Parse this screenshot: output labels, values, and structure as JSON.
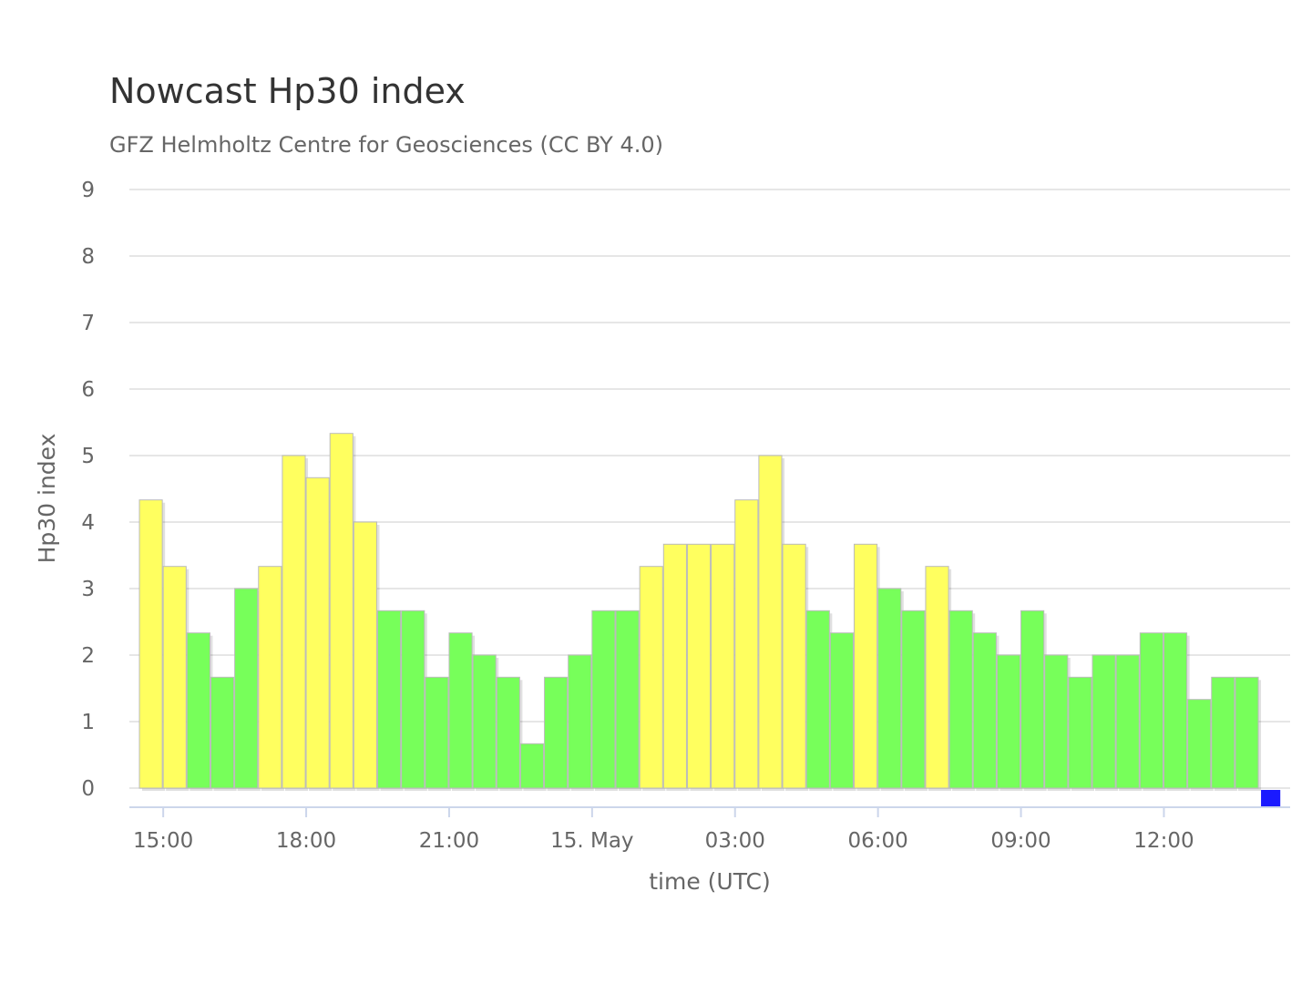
{
  "title": "Nowcast Hp30 index",
  "subtitle": "GFZ Helmholtz Centre for Geosciences (CC BY 4.0)",
  "chart_data": {
    "type": "bar",
    "title": "Nowcast Hp30 index",
    "subtitle": "GFZ Helmholtz Centre for Geosciences (CC BY 4.0)",
    "xlabel": "time (UTC)",
    "ylabel": "Hp30 index",
    "ylim": [
      0,
      9
    ],
    "yticks": [
      "0",
      "1",
      "2",
      "3",
      "4",
      "5",
      "6",
      "7",
      "8",
      "9"
    ],
    "interval_minutes": 30,
    "first_bar_start": "14:30",
    "xticks": [
      {
        "label": "15:00",
        "slot": 1
      },
      {
        "label": "18:00",
        "slot": 7
      },
      {
        "label": "21:00",
        "slot": 13
      },
      {
        "label": "15. May",
        "slot": 19
      },
      {
        "label": "03:00",
        "slot": 25
      },
      {
        "label": "06:00",
        "slot": 31
      },
      {
        "label": "09:00",
        "slot": 37
      },
      {
        "label": "12:00",
        "slot": 43
      }
    ],
    "grid": true,
    "colors": {
      "quiet": "#77ff5a",
      "elevated": "#ffff5f",
      "current": "#1a1aff",
      "grid": "#e6e6e6",
      "axis": "#ccd6eb"
    },
    "values": [
      4.333,
      3.333,
      2.333,
      1.667,
      3.0,
      3.333,
      5.0,
      4.667,
      5.333,
      4.0,
      2.667,
      2.667,
      1.667,
      2.333,
      2.0,
      1.667,
      0.667,
      1.667,
      2.0,
      2.667,
      2.667,
      3.333,
      3.667,
      3.667,
      3.667,
      4.333,
      5.0,
      3.667,
      2.667,
      2.333,
      3.667,
      3.0,
      2.667,
      3.333,
      2.667,
      2.333,
      2.0,
      2.667,
      2.0,
      1.667,
      2.0,
      2.0,
      2.333,
      2.333,
      1.333,
      1.667,
      1.667,
      0
    ],
    "categories_color": [
      "elevated",
      "elevated",
      "quiet",
      "quiet",
      "quiet",
      "elevated",
      "elevated",
      "elevated",
      "elevated",
      "elevated",
      "quiet",
      "quiet",
      "quiet",
      "quiet",
      "quiet",
      "quiet",
      "quiet",
      "quiet",
      "quiet",
      "quiet",
      "quiet",
      "elevated",
      "elevated",
      "elevated",
      "elevated",
      "elevated",
      "elevated",
      "elevated",
      "quiet",
      "quiet",
      "elevated",
      "quiet",
      "quiet",
      "elevated",
      "quiet",
      "quiet",
      "quiet",
      "quiet",
      "quiet",
      "quiet",
      "quiet",
      "quiet",
      "quiet",
      "quiet",
      "quiet",
      "quiet",
      "quiet",
      "current"
    ]
  }
}
